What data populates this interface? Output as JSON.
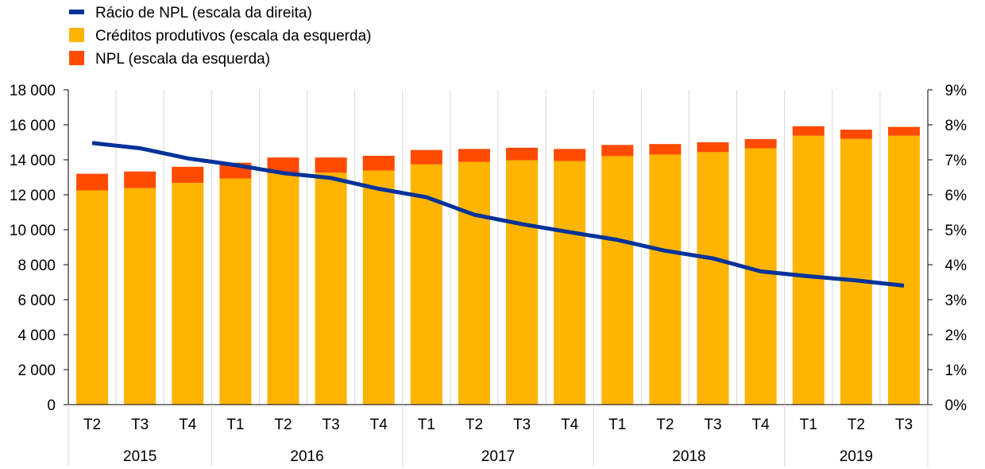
{
  "chart_data": {
    "type": "bar",
    "stacked": true,
    "legend_position": "top-left",
    "grid": {
      "vertical_separators": true,
      "horizontal": false
    },
    "colors": {
      "performing": "#FFB400",
      "npl": "#FF4B00",
      "ratio": "#003299",
      "grid": "#D9D9D9",
      "axis": "#000000"
    },
    "legend": [
      {
        "key": "ratio",
        "label": "Rácio de NPL (escala da direita)",
        "shape": "line"
      },
      {
        "key": "performing",
        "label": "Créditos produtivos (escala da esquerda)",
        "shape": "box"
      },
      {
        "key": "npl",
        "label": "NPL (escala da esquerda)",
        "shape": "box"
      }
    ],
    "categories": [
      "T2",
      "T3",
      "T4",
      "T1",
      "T2",
      "T3",
      "T4",
      "T1",
      "T2",
      "T3",
      "T4",
      "T1",
      "T2",
      "T3",
      "T4",
      "T1",
      "T2",
      "T3"
    ],
    "groups": [
      {
        "label": "2015",
        "count": 3
      },
      {
        "label": "2016",
        "count": 4
      },
      {
        "label": "2017",
        "count": 4
      },
      {
        "label": "2018",
        "count": 4
      },
      {
        "label": "2019",
        "count": 3
      }
    ],
    "series": [
      {
        "key": "performing",
        "name": "Créditos produtivos (escala da esquerda)",
        "axis": "left",
        "values": [
          12250,
          12380,
          12680,
          12930,
          13240,
          13270,
          13380,
          13740,
          13880,
          13970,
          13930,
          14210,
          14300,
          14440,
          14660,
          15380,
          15190,
          15380
        ]
      },
      {
        "key": "npl",
        "name": "NPL (escala da esquerda)",
        "axis": "left",
        "values": [
          950,
          950,
          920,
          900,
          890,
          860,
          850,
          820,
          740,
          720,
          690,
          640,
          600,
          560,
          520,
          540,
          530,
          500
        ]
      },
      {
        "key": "ratio",
        "name": "Rácio de NPL (escala da direita)",
        "axis": "right",
        "type": "line",
        "values": [
          7.48,
          7.33,
          7.04,
          6.85,
          6.62,
          6.48,
          6.17,
          5.93,
          5.43,
          5.16,
          4.93,
          4.71,
          4.4,
          4.18,
          3.81,
          3.67,
          3.55,
          3.4
        ]
      }
    ],
    "y_left": {
      "min": 0,
      "max": 18000,
      "ticks": [
        0,
        2000,
        4000,
        6000,
        8000,
        10000,
        12000,
        14000,
        16000,
        18000
      ],
      "tick_labels": [
        "0",
        "2 000",
        "4 000",
        "6 000",
        "8 000",
        "10 000",
        "12 000",
        "14 000",
        "16 000",
        "18 000"
      ]
    },
    "y_right": {
      "min": 0,
      "max": 9,
      "ticks": [
        0,
        1,
        2,
        3,
        4,
        5,
        6,
        7,
        8,
        9
      ],
      "tick_labels": [
        "0%",
        "1%",
        "2%",
        "3%",
        "4%",
        "5%",
        "6%",
        "7%",
        "8%",
        "9%"
      ]
    }
  }
}
